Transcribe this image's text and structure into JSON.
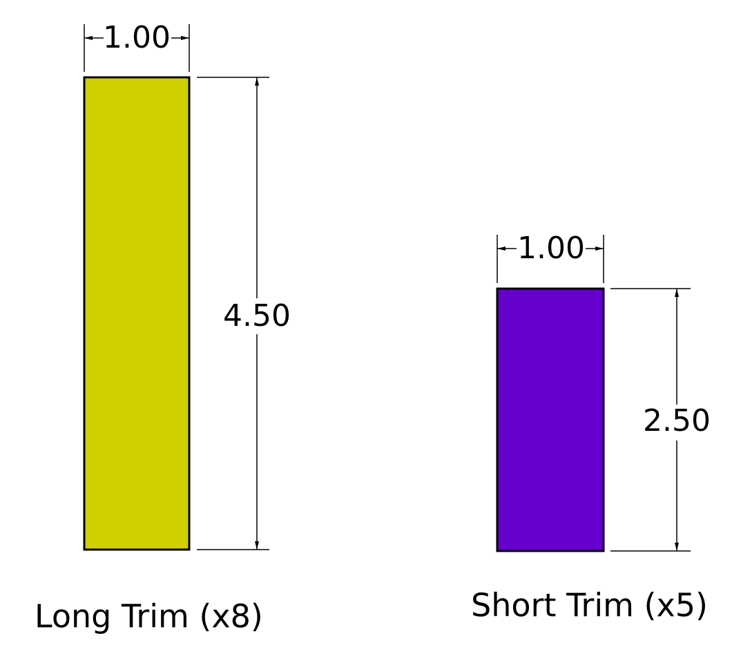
{
  "parts": [
    {
      "label": "Long Trim (x8)",
      "width": "1.00",
      "height": "4.50"
    },
    {
      "label": "Short Trim (x5)",
      "width": "1.00",
      "height": "2.50"
    }
  ]
}
